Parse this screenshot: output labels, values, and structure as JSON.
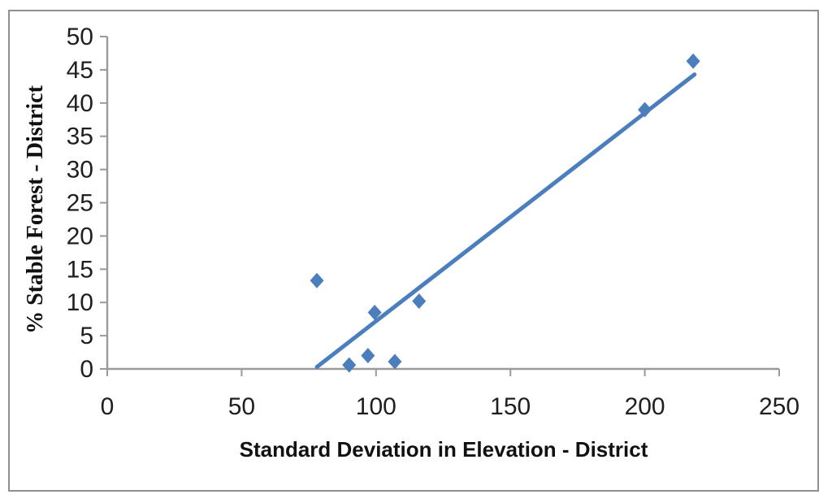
{
  "chart_data": {
    "type": "scatter",
    "title": "",
    "xlabel": "Standard Deviation in Elevation - District",
    "ylabel": "% Stable Forest - District",
    "xlim": [
      0,
      250
    ],
    "ylim": [
      0,
      50
    ],
    "x_ticks": [
      0,
      50,
      100,
      150,
      200,
      250
    ],
    "y_ticks": [
      0,
      5,
      10,
      15,
      20,
      25,
      30,
      35,
      40,
      45,
      50
    ],
    "grid": false,
    "legend_visible": false,
    "series": [
      {
        "name": "district-points",
        "marker": "diamond",
        "color": "#4a7ebc",
        "points": [
          {
            "x": 78,
            "y": 13.3
          },
          {
            "x": 90,
            "y": 0.6
          },
          {
            "x": 97,
            "y": 2.0
          },
          {
            "x": 99.5,
            "y": 8.5
          },
          {
            "x": 107,
            "y": 1.1
          },
          {
            "x": 116,
            "y": 10.2
          },
          {
            "x": 200,
            "y": 39.0
          },
          {
            "x": 218,
            "y": 46.3
          }
        ]
      }
    ],
    "trendline": {
      "x1": 78,
      "y1": 0.3,
      "x2": 218.5,
      "y2": 44.3,
      "color": "#4a7ebc"
    }
  },
  "colors": {
    "marker": "#4a7ebc",
    "trendline": "#4a7ebc",
    "axis_line": "#9a9a9a",
    "chart_border": "#8f8f8f",
    "tick_label": "#1f1f1f",
    "background": "#ffffff"
  }
}
